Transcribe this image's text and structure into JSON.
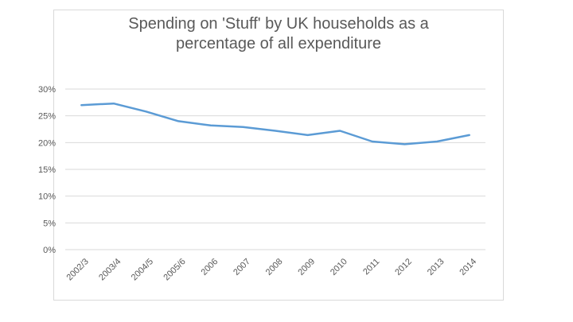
{
  "chart_data": {
    "type": "line",
    "title_lines": [
      "Spending  on 'Stuff' by UK households  as a",
      "percentage of all expenditure"
    ],
    "categories": [
      "2002/3",
      "2003/4",
      "2004/5",
      "2005/6",
      "2006",
      "2007",
      "2008",
      "2009",
      "2010",
      "2011",
      "2012",
      "2013",
      "2014"
    ],
    "series": [
      {
        "values": [
          27.0,
          27.3,
          25.8,
          24.0,
          23.2,
          22.9,
          22.2,
          21.4,
          22.2,
          20.2,
          19.7,
          20.2,
          21.4
        ]
      }
    ],
    "y_ticks": [
      "0%",
      "5%",
      "10%",
      "15%",
      "20%",
      "25%",
      "30%"
    ],
    "ylim": [
      0,
      30
    ],
    "grid": true,
    "line_color": "#5b9bd5",
    "grid_color": "#d9d9d9"
  }
}
